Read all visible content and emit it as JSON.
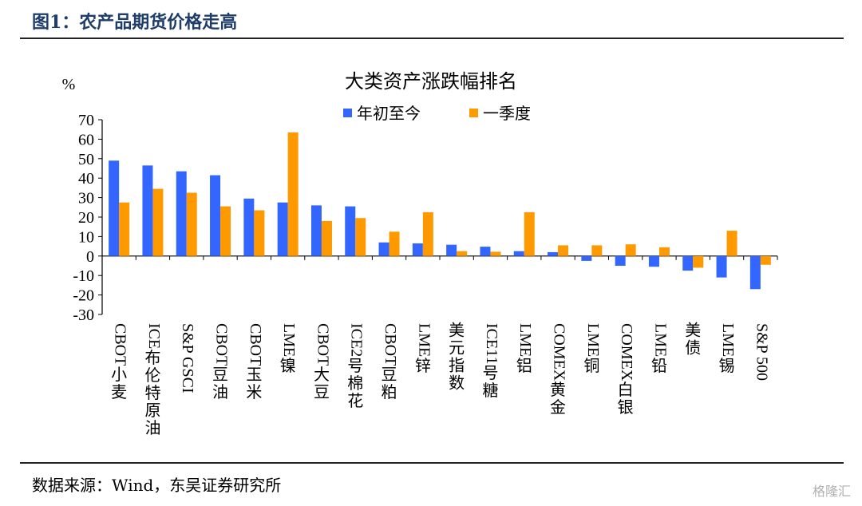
{
  "figure_title": "图1：农产品期货价格走高",
  "source": "数据来源：Wind，东吴证券研究所",
  "watermark": "格隆汇",
  "colors": {
    "series_ytd": "#3366ff",
    "series_q1": "#ff9900",
    "figure_title": "#1f3d6b"
  },
  "chart_data": {
    "type": "bar",
    "title": "大类资产涨跌幅排名",
    "ylabel": "%",
    "ylim": [
      -30,
      70
    ],
    "yticks": [
      70,
      60,
      50,
      40,
      30,
      20,
      10,
      0,
      -10,
      -20,
      -30
    ],
    "legend_position": "top-center",
    "grid": false,
    "categories": [
      "CBOT小麦",
      "ICE布伦特原油",
      "S&P GSCI",
      "CBOT豆油",
      "CBOT玉米",
      "LME镍",
      "CBOT大豆",
      "ICE2号棉花",
      "CBOT豆粕",
      "LME锌",
      "美元指数",
      "ICE11号糖",
      "LME铝",
      "COMEX黄金",
      "LME铜",
      "COMEX白银",
      "LME铅",
      "美债",
      "LME锡",
      "S&P 500"
    ],
    "series": [
      {
        "name": "年初至今",
        "values": [
          49,
          46.5,
          43.5,
          41.5,
          29.5,
          27.5,
          26,
          25.5,
          7,
          6.5,
          5.8,
          4.8,
          2.5,
          2,
          -2.5,
          -5,
          -5.5,
          -7.5,
          -11,
          -17
        ]
      },
      {
        "name": "一季度",
        "values": [
          27.5,
          34.5,
          32.5,
          25.5,
          23.5,
          63.5,
          18,
          19.5,
          12.5,
          22.5,
          2.5,
          2.2,
          22.5,
          5.5,
          5.5,
          6,
          4.5,
          -6,
          13,
          -4.5
        ]
      }
    ]
  }
}
